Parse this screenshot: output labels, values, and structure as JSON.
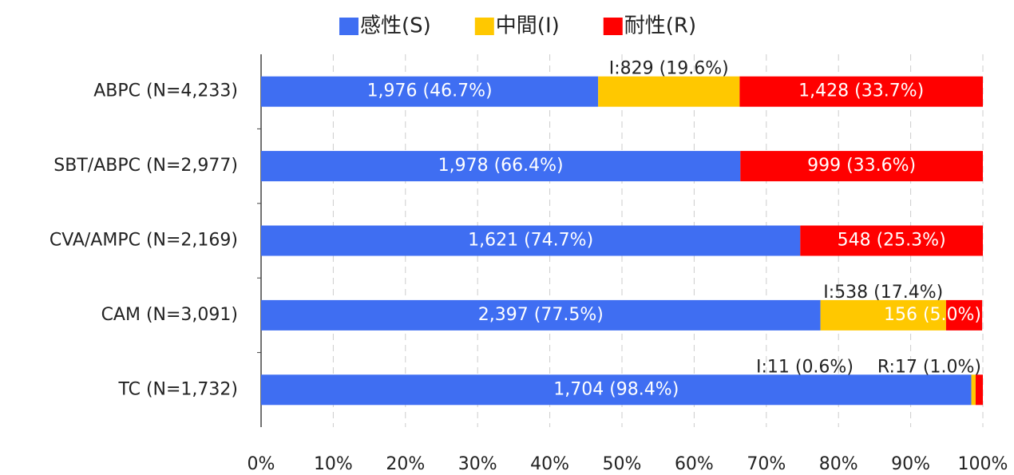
{
  "chart_data": {
    "type": "stacked_barh",
    "categories": [
      "ABPC (N=4,233)",
      "SBT/ABPC (N=2,977)",
      "CVA/AMPC (N=2,169)",
      "CAM (N=3,091)",
      "TC (N=1,732)"
    ],
    "series": [
      {
        "name": "感性(S)",
        "color": "#3f6ef2",
        "values": [
          46.7,
          66.4,
          74.7,
          77.5,
          98.4
        ],
        "value_labels": [
          "1,976 (46.7%)",
          "1,978 (66.4%)",
          "1,621 (74.7%)",
          "2,397 (77.5%)",
          "1,704 (98.4%)"
        ]
      },
      {
        "name": "中間(I)",
        "color": "#ffc800",
        "values": [
          19.6,
          0,
          0,
          17.4,
          0.6
        ],
        "value_labels": [
          "I:829 (19.6%)",
          null,
          null,
          "I:538 (17.4%)",
          "I:11 (0.6%)"
        ]
      },
      {
        "name": "耐性(R)",
        "color": "#ff0000",
        "values": [
          33.7,
          33.6,
          25.3,
          5.0,
          1.0
        ],
        "value_labels": [
          "1,428 (33.7%)",
          "999 (33.6%)",
          "548 (25.3%)",
          "156 (5.0%)",
          "R:17 (1.0%)"
        ]
      }
    ],
    "xlim": [
      0,
      100
    ],
    "xticks": [
      {
        "value": 0,
        "label": "0%"
      },
      {
        "value": 10,
        "label": "10%"
      },
      {
        "value": 20,
        "label": "20%"
      },
      {
        "value": 30,
        "label": "30%"
      },
      {
        "value": 40,
        "label": "40%"
      },
      {
        "value": 50,
        "label": "50%"
      },
      {
        "value": 60,
        "label": "60%"
      },
      {
        "value": 70,
        "label": "70%"
      },
      {
        "value": 80,
        "label": "80%"
      },
      {
        "value": 90,
        "label": "90%"
      },
      {
        "value": 100,
        "label": "100%"
      }
    ],
    "grid": true,
    "legend": "top"
  }
}
